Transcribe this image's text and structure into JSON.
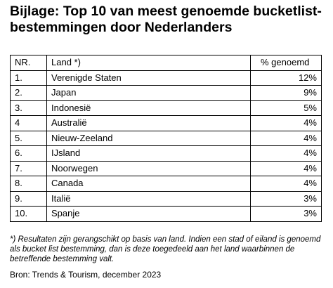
{
  "document": {
    "title": "Bijlage: Top 10 van meest genoemde bucketlist-\nbestemmingen door Nederlanders",
    "table": {
      "headers": [
        "NR.",
        "Land *)",
        "% genoemd"
      ],
      "rows": [
        [
          "1.",
          "Verenigde Staten",
          "12%"
        ],
        [
          "2.",
          "Japan",
          "9%"
        ],
        [
          "3.",
          "Indonesië",
          "5%"
        ],
        [
          "4",
          "Australië",
          "4%"
        ],
        [
          "5.",
          "Nieuw-Zeeland",
          "4%"
        ],
        [
          "6.",
          "IJsland",
          "4%"
        ],
        [
          "7.",
          "Noorwegen",
          "4%"
        ],
        [
          "8.",
          "Canada",
          "4%"
        ],
        [
          "9.",
          "Italië",
          "3%"
        ],
        [
          "10.",
          "Spanje",
          "3%"
        ]
      ]
    },
    "footnote": "*) Resultaten zijn gerangschikt op basis van land. Indien een stad of eiland is genoemd als bucket list bestemming, dan is deze toegedeeld aan het land waarbinnen de betreffende bestemming valt.",
    "source": "Bron: Trends & Tourism, december 2023"
  }
}
